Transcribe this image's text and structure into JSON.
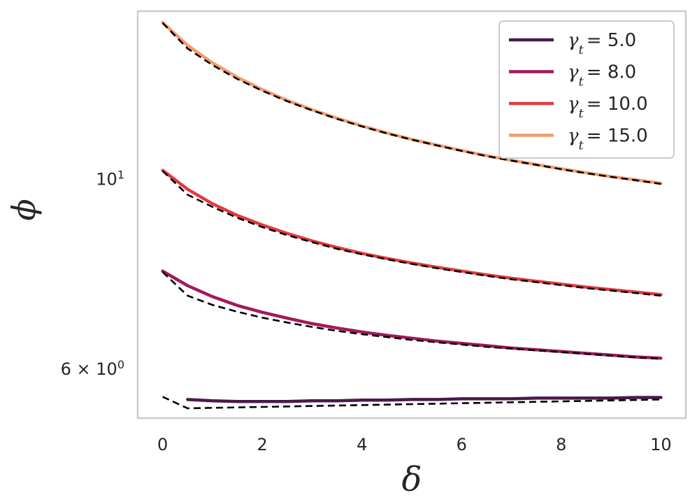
{
  "chart_data": {
    "type": "line",
    "xlabel": "δ",
    "ylabel": "ϕ",
    "xlim": [
      -0.5,
      10.5
    ],
    "ylim": [
      5.25,
      15.7
    ],
    "yscale": "log",
    "grid": false,
    "legend_placement": "top-right",
    "x_ticks": [
      0,
      2,
      4,
      6,
      8,
      10
    ],
    "x_tick_labels": [
      "0",
      "2",
      "4",
      "6",
      "8",
      "10"
    ],
    "y_ticks": [
      {
        "value": 10,
        "base": "10",
        "exp": "1",
        "label": "10^1"
      },
      {
        "value": 6,
        "mantissa": "6",
        "base": "10",
        "exp": "0",
        "label": "6 × 10^0"
      }
    ],
    "x": [
      0,
      0.5,
      1,
      1.5,
      2,
      2.5,
      3,
      3.5,
      4,
      4.5,
      5,
      5.5,
      6,
      6.5,
      7,
      7.5,
      8,
      8.5,
      9,
      9.5,
      10
    ],
    "series": [
      {
        "name": "γt = 5.0",
        "legend_math": "γ",
        "legend_sub": "t",
        "legend_value": "= 5.0",
        "color": "#4a1a4c",
        "x": [
          0.5,
          1,
          1.5,
          2,
          2.5,
          3,
          3.5,
          4,
          4.5,
          5,
          5.5,
          6,
          6.5,
          7,
          7.5,
          8,
          8.5,
          9,
          9.5,
          10
        ],
        "values": [
          5.52,
          5.5,
          5.49,
          5.49,
          5.49,
          5.5,
          5.5,
          5.51,
          5.51,
          5.52,
          5.52,
          5.53,
          5.53,
          5.53,
          5.54,
          5.54,
          5.54,
          5.54,
          5.55,
          5.55
        ],
        "fit_x": [
          0,
          0.5,
          10
        ],
        "fit_values": [
          5.56,
          5.39,
          5.52
        ]
      },
      {
        "name": "γt = 8.0",
        "legend_math": "γ",
        "legend_sub": "t",
        "legend_value": "= 8.0",
        "color": "#a11a5b",
        "values": [
          7.8,
          7.5,
          7.28,
          7.11,
          6.98,
          6.87,
          6.77,
          6.69,
          6.62,
          6.56,
          6.51,
          6.46,
          6.42,
          6.38,
          6.34,
          6.31,
          6.28,
          6.25,
          6.22,
          6.19,
          6.17
        ],
        "fit_values": [
          7.78,
          7.3,
          7.12,
          6.99,
          6.88,
          6.79,
          6.71,
          6.64,
          6.58,
          6.53,
          6.48,
          6.44,
          6.4,
          6.36,
          6.33,
          6.3,
          6.27,
          6.24,
          6.21,
          6.18,
          6.16
        ]
      },
      {
        "name": "γt = 10.0",
        "legend_math": "γ",
        "legend_sub": "t",
        "legend_value": "= 10.0",
        "color": "#e03b3f",
        "values": [
          10.23,
          9.72,
          9.35,
          9.06,
          8.83,
          8.63,
          8.46,
          8.31,
          8.18,
          8.07,
          7.97,
          7.88,
          7.8,
          7.72,
          7.65,
          7.59,
          7.53,
          7.47,
          7.42,
          7.37,
          7.32
        ],
        "fit_values": [
          10.21,
          9.58,
          9.27,
          9.0,
          8.78,
          8.59,
          8.43,
          8.28,
          8.16,
          8.05,
          7.95,
          7.86,
          7.78,
          7.7,
          7.63,
          7.57,
          7.51,
          7.45,
          7.4,
          7.35,
          7.3
        ]
      },
      {
        "name": "γt = 15.0",
        "legend_math": "γ",
        "legend_sub": "t",
        "legend_value": "= 15.0",
        "color": "#f39a6d",
        "values": [
          15.23,
          14.32,
          13.66,
          13.14,
          12.71,
          12.35,
          12.04,
          11.77,
          11.53,
          11.31,
          11.12,
          10.95,
          10.79,
          10.64,
          10.51,
          10.39,
          10.27,
          10.16,
          10.06,
          9.97,
          9.88
        ],
        "fit_values": [
          15.21,
          14.2,
          13.58,
          13.08,
          12.67,
          12.32,
          12.02,
          11.75,
          11.51,
          11.3,
          11.11,
          10.94,
          10.78,
          10.63,
          10.5,
          10.38,
          10.26,
          10.15,
          10.05,
          9.96,
          9.86
        ]
      }
    ],
    "fit_style": {
      "color": "#000000",
      "dash": "dashed"
    }
  }
}
